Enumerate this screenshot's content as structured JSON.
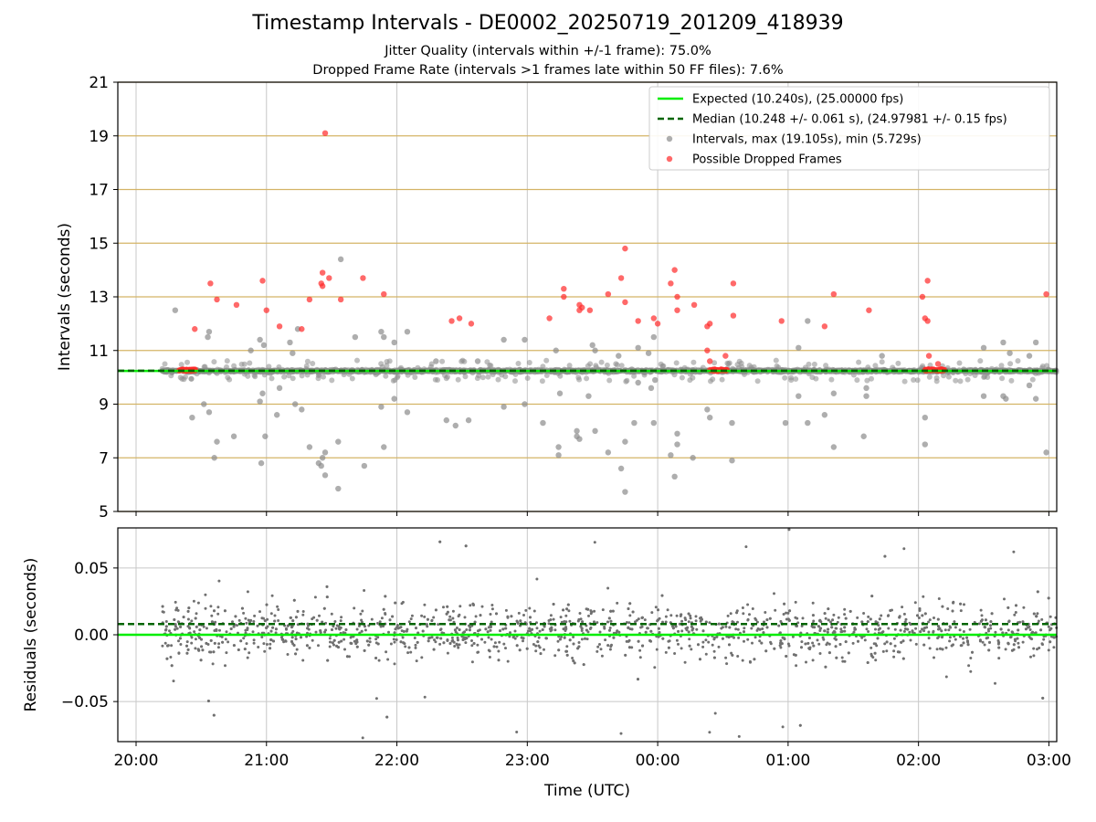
{
  "title": "Timestamp Intervals - DE0002_20250719_201209_418939",
  "subtitle_1": "Jitter Quality (intervals within +/-1 frame): 75.0%",
  "subtitle_2": "Dropped Frame Rate (intervals >1 frames late within 50 FF files): 7.6%",
  "colors": {
    "expected": "#00ee00",
    "median": "#006400",
    "intervals": "#8c8c8c",
    "dropped": "#ff2a2a",
    "gold_grid": "#d4b466",
    "grid": "#c8c8c8"
  },
  "chart_data": [
    {
      "type": "scatter",
      "title": "",
      "xlabel": "",
      "ylabel": "Intervals (seconds)",
      "xlim_hours": [
        19.86,
        27.06
      ],
      "ylim": [
        5,
        21
      ],
      "yticks": [
        5,
        7,
        9,
        11,
        13,
        15,
        17,
        19,
        21
      ],
      "xticks": [
        20,
        21,
        22,
        23,
        24,
        25,
        26,
        27
      ],
      "grid": true,
      "legend_position": "top-right",
      "legend": [
        "Expected (10.240s), (25.00000 fps)",
        "Median (10.248 +/- 0.061 s), (24.97981 +/- 0.15 fps)",
        "Intervals, max (19.105s), min (5.729s)",
        "Possible Dropped Frames"
      ],
      "series": [
        {
          "name": "Expected (10.240s), (25.00000 fps)",
          "kind": "hline",
          "y": 10.24
        },
        {
          "name": "Median (10.248 +/- 0.061 s), (24.97981 +/- 0.15 fps)",
          "kind": "hline",
          "y": 10.248
        },
        {
          "name": "Intervals, max (19.105s), min (5.729s)",
          "kind": "scatter",
          "baseline": {
            "x_range": [
              20.2,
              27.06
            ],
            "y": 10.24,
            "approx_count": 2400
          },
          "outliers": [
            [
              20.3,
              12.5
            ],
            [
              20.43,
              8.5
            ],
            [
              20.52,
              9.0
            ],
            [
              20.55,
              11.5
            ],
            [
              20.56,
              11.7
            ],
            [
              20.56,
              8.7
            ],
            [
              20.6,
              7.0
            ],
            [
              20.62,
              7.6
            ],
            [
              20.75,
              7.8
            ],
            [
              20.88,
              11.0
            ],
            [
              20.95,
              9.1
            ],
            [
              20.95,
              11.4
            ],
            [
              20.96,
              6.8
            ],
            [
              20.97,
              9.4
            ],
            [
              20.98,
              11.2
            ],
            [
              20.99,
              7.8
            ],
            [
              21.08,
              8.6
            ],
            [
              21.1,
              9.6
            ],
            [
              21.18,
              11.3
            ],
            [
              21.2,
              10.9
            ],
            [
              21.22,
              9.0
            ],
            [
              21.24,
              11.8
            ],
            [
              21.27,
              8.8
            ],
            [
              21.33,
              7.4
            ],
            [
              21.4,
              6.8
            ],
            [
              21.42,
              6.7
            ],
            [
              21.43,
              7.0
            ],
            [
              21.45,
              7.2
            ],
            [
              21.45,
              6.35
            ],
            [
              21.55,
              7.6
            ],
            [
              21.55,
              5.85
            ],
            [
              21.57,
              14.4
            ],
            [
              21.68,
              11.5
            ],
            [
              21.75,
              6.7
            ],
            [
              21.88,
              11.7
            ],
            [
              21.88,
              8.9
            ],
            [
              21.9,
              7.4
            ],
            [
              21.9,
              11.5
            ],
            [
              21.98,
              11.3
            ],
            [
              21.98,
              9.2
            ],
            [
              22.08,
              11.7
            ],
            [
              22.08,
              8.7
            ],
            [
              22.3,
              10.6
            ],
            [
              22.38,
              8.4
            ],
            [
              22.45,
              8.2
            ],
            [
              22.55,
              8.4
            ],
            [
              22.62,
              10.6
            ],
            [
              22.82,
              11.4
            ],
            [
              22.82,
              8.9
            ],
            [
              22.98,
              11.4
            ],
            [
              22.98,
              9.0
            ],
            [
              23.12,
              8.3
            ],
            [
              23.22,
              11.0
            ],
            [
              23.24,
              7.4
            ],
            [
              23.24,
              7.1
            ],
            [
              23.25,
              9.4
            ],
            [
              23.38,
              7.8
            ],
            [
              23.38,
              8.0
            ],
            [
              23.4,
              7.7
            ],
            [
              23.47,
              9.3
            ],
            [
              23.5,
              11.2
            ],
            [
              23.52,
              11.0
            ],
            [
              23.52,
              8.0
            ],
            [
              23.62,
              7.2
            ],
            [
              23.7,
              10.8
            ],
            [
              23.72,
              6.6
            ],
            [
              23.75,
              7.6
            ],
            [
              23.75,
              5.73
            ],
            [
              23.82,
              8.3
            ],
            [
              23.85,
              11.1
            ],
            [
              23.85,
              9.8
            ],
            [
              23.93,
              10.9
            ],
            [
              23.95,
              9.6
            ],
            [
              23.97,
              8.3
            ],
            [
              23.97,
              11.5
            ],
            [
              23.98,
              9.9
            ],
            [
              24.1,
              7.1
            ],
            [
              24.13,
              6.3
            ],
            [
              24.15,
              7.9
            ],
            [
              24.15,
              7.5
            ],
            [
              24.27,
              7.0
            ],
            [
              24.38,
              8.8
            ],
            [
              24.4,
              8.5
            ],
            [
              24.57,
              8.3
            ],
            [
              24.57,
              6.9
            ],
            [
              24.98,
              8.3
            ],
            [
              25.08,
              11.1
            ],
            [
              25.08,
              9.3
            ],
            [
              25.15,
              8.3
            ],
            [
              25.15,
              12.1
            ],
            [
              25.28,
              8.6
            ],
            [
              25.35,
              7.4
            ],
            [
              25.35,
              9.4
            ],
            [
              25.58,
              7.8
            ],
            [
              25.6,
              9.3
            ],
            [
              25.6,
              9.6
            ],
            [
              25.72,
              10.8
            ],
            [
              26.05,
              7.5
            ],
            [
              26.05,
              8.5
            ],
            [
              26.5,
              11.1
            ],
            [
              26.5,
              9.3
            ],
            [
              26.65,
              9.3
            ],
            [
              26.65,
              11.3
            ],
            [
              26.67,
              9.2
            ],
            [
              26.7,
              10.9
            ],
            [
              26.85,
              10.8
            ],
            [
              26.85,
              9.7
            ],
            [
              26.9,
              11.3
            ],
            [
              26.9,
              9.2
            ],
            [
              26.98,
              7.2
            ]
          ]
        },
        {
          "name": "Possible Dropped Frames",
          "kind": "scatter",
          "clusters": [
            {
              "x_range": [
                20.33,
                20.46
              ],
              "y": 10.27
            },
            {
              "x_range": [
                24.4,
                24.53
              ],
              "y": 10.27
            },
            {
              "x_range": [
                26.05,
                26.2
              ],
              "y": 10.27
            }
          ],
          "points": [
            [
              20.45,
              11.8
            ],
            [
              20.57,
              13.5
            ],
            [
              20.62,
              12.9
            ],
            [
              20.77,
              12.7
            ],
            [
              20.97,
              13.6
            ],
            [
              21.0,
              12.5
            ],
            [
              21.1,
              11.9
            ],
            [
              21.27,
              11.8
            ],
            [
              21.33,
              12.9
            ],
            [
              21.42,
              13.5
            ],
            [
              21.43,
              13.9
            ],
            [
              21.43,
              13.4
            ],
            [
              21.45,
              19.1
            ],
            [
              21.48,
              13.7
            ],
            [
              21.57,
              12.9
            ],
            [
              21.74,
              13.7
            ],
            [
              21.9,
              13.1
            ],
            [
              22.42,
              12.1
            ],
            [
              22.48,
              12.2
            ],
            [
              22.57,
              12.0
            ],
            [
              23.17,
              12.2
            ],
            [
              23.28,
              13.0
            ],
            [
              23.28,
              13.3
            ],
            [
              23.4,
              12.5
            ],
            [
              23.4,
              12.7
            ],
            [
              23.42,
              12.6
            ],
            [
              23.48,
              12.5
            ],
            [
              23.62,
              13.1
            ],
            [
              23.72,
              13.7
            ],
            [
              23.75,
              14.8
            ],
            [
              23.75,
              12.8
            ],
            [
              23.85,
              12.1
            ],
            [
              23.97,
              12.2
            ],
            [
              24.0,
              12.0
            ],
            [
              24.1,
              13.5
            ],
            [
              24.13,
              14.0
            ],
            [
              24.15,
              13.0
            ],
            [
              24.15,
              12.5
            ],
            [
              24.28,
              12.7
            ],
            [
              24.38,
              11.9
            ],
            [
              24.4,
              12.0
            ],
            [
              24.38,
              11.0
            ],
            [
              24.4,
              10.6
            ],
            [
              24.52,
              10.8
            ],
            [
              24.58,
              13.5
            ],
            [
              24.58,
              12.3
            ],
            [
              24.95,
              12.1
            ],
            [
              25.28,
              11.9
            ],
            [
              25.35,
              13.1
            ],
            [
              25.62,
              12.5
            ],
            [
              26.03,
              13.0
            ],
            [
              26.05,
              12.2
            ],
            [
              26.07,
              12.1
            ],
            [
              26.07,
              13.6
            ],
            [
              26.08,
              10.8
            ],
            [
              26.15,
              10.5
            ],
            [
              26.98,
              13.1
            ]
          ]
        }
      ]
    },
    {
      "type": "scatter",
      "title": "",
      "xlabel": "Time (UTC)",
      "ylabel": "Residuals (seconds)",
      "xlim_hours": [
        19.86,
        27.06
      ],
      "ylim": [
        -0.08,
        0.08
      ],
      "yticks": [
        -0.05,
        0.0,
        0.05
      ],
      "ytick_labels": [
        "−0.05",
        "0.00",
        "0.05"
      ],
      "xticks": [
        20,
        21,
        22,
        23,
        24,
        25,
        26,
        27
      ],
      "xtick_labels": [
        "20:00",
        "21:00",
        "22:00",
        "23:00",
        "00:00",
        "01:00",
        "02:00",
        "03:00"
      ],
      "grid": true,
      "series": [
        {
          "name": "Expected",
          "kind": "hline",
          "y": 0.0
        },
        {
          "name": "Median",
          "kind": "hline",
          "y": 0.008
        },
        {
          "name": "Residuals",
          "kind": "scatter",
          "x_range": [
            20.2,
            27.06
          ],
          "spread": 0.02,
          "extreme": 0.08,
          "approx_count": 1900
        }
      ]
    }
  ]
}
